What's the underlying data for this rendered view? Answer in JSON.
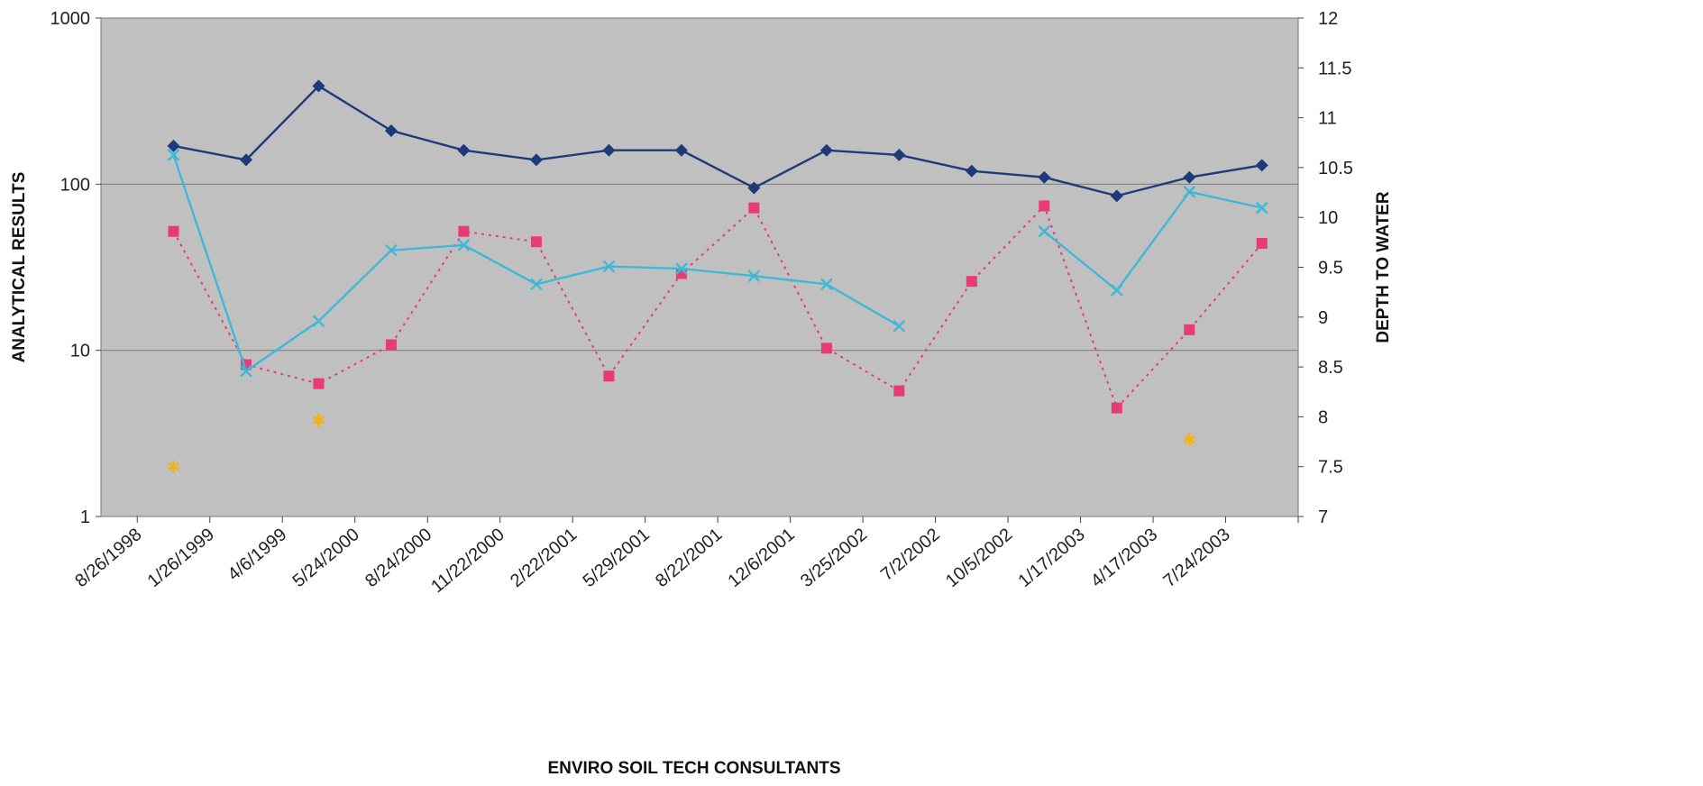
{
  "chart_data": {
    "type": "line",
    "title": "",
    "footer": "ENVIRO SOIL TECH CONSULTANTS",
    "ylabel": "ANALYTICAL RESULTS",
    "y2label": "DEPTH TO WATER",
    "yscale": "log",
    "ylim": [
      1,
      1000
    ],
    "y_ticks": [
      "1",
      "10",
      "100",
      "1000"
    ],
    "y2lim": [
      7,
      12
    ],
    "y2_ticks": [
      "7",
      "7.5",
      "8",
      "8.5",
      "9",
      "9.5",
      "10",
      "10.5",
      "11",
      "11.5",
      "12"
    ],
    "grid": "horizontal major lines",
    "plot_background": "#c0c0c0",
    "categories": [
      "8/26/1998",
      "1/26/1999",
      "4/6/1999",
      "5/24/2000",
      "8/24/2000",
      "11/22/2000",
      "2/22/2001",
      "5/29/2001",
      "8/22/2001",
      "12/6/2001",
      "3/25/2002",
      "7/2/2002",
      "10/5/2002",
      "1/17/2003",
      "4/17/2003",
      "7/24/2003"
    ],
    "series": [
      {
        "axis": "left",
        "color": "#1f3a7a",
        "marker": "diamond",
        "line": "solid",
        "values": [
          170,
          140,
          390,
          210,
          160,
          140,
          160,
          160,
          95,
          160,
          150,
          120,
          110,
          85,
          110,
          130
        ]
      },
      {
        "axis": "left",
        "color": "#e83a78",
        "marker": "square",
        "line": "dotted",
        "values": [
          52,
          8.2,
          6.3,
          10.8,
          52,
          45,
          7.0,
          29,
          72,
          10.3,
          5.7,
          26,
          74,
          4.5,
          13.3,
          44
        ]
      },
      {
        "axis": "left",
        "color": "#3fb8d8",
        "marker": "x",
        "line": "solid",
        "values": [
          150,
          7.5,
          15,
          40,
          43,
          25,
          32,
          31,
          28,
          25,
          14,
          null,
          52,
          23,
          90,
          72
        ]
      },
      {
        "axis": "left",
        "color": "#f2b21e",
        "marker": "star",
        "line": "none",
        "values": [
          2.0,
          null,
          3.8,
          null,
          null,
          null,
          null,
          null,
          null,
          null,
          null,
          null,
          null,
          null,
          2.9,
          null
        ]
      }
    ]
  }
}
